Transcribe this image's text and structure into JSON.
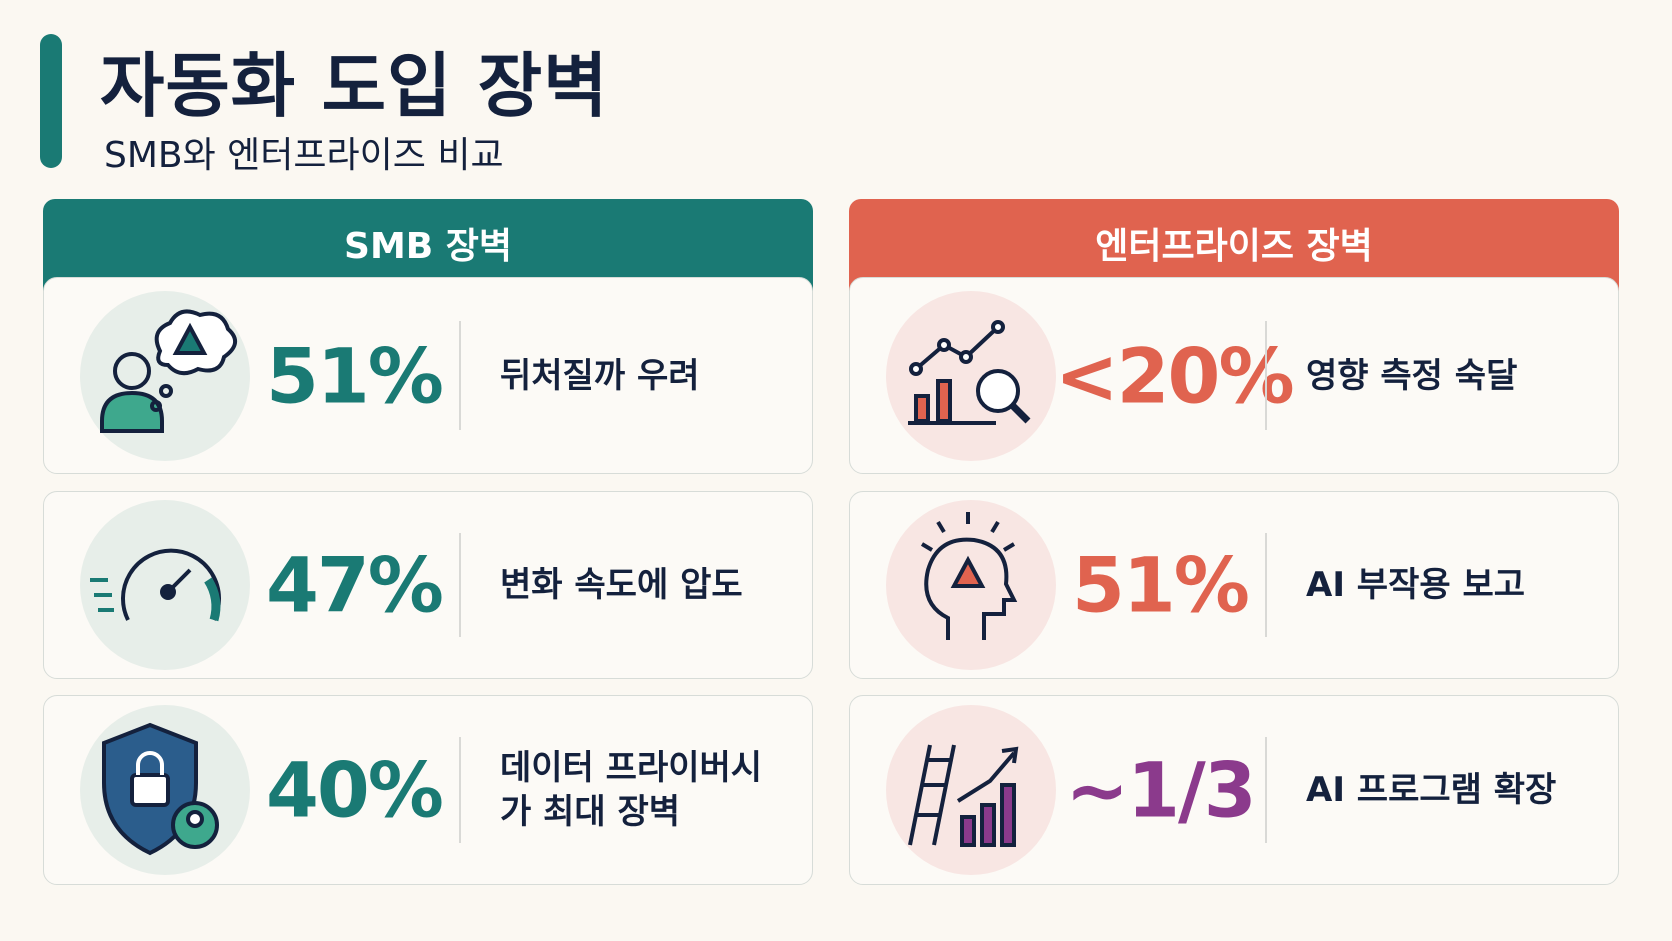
{
  "header": {
    "title": "자동화 도입 장벽",
    "subtitle": "SMB와 엔터프라이즈 비교"
  },
  "panels": [
    {
      "heading": "SMB 장벽",
      "items": [
        {
          "stat": "51%",
          "label": "뒤처질까 우려"
        },
        {
          "stat": "47%",
          "label": "변화 속도에 압도"
        },
        {
          "stat": "40%",
          "label": "데이터 프라이버시가 최대 장벽"
        }
      ]
    },
    {
      "heading": "엔터프라이즈 장벽",
      "items": [
        {
          "stat": "<20%",
          "label": "영향 측정 숙달"
        },
        {
          "stat": "51%",
          "label": "AI 부작용 보고"
        },
        {
          "stat": "~1/3",
          "label": "AI 프로그램 확장"
        }
      ]
    }
  ]
}
